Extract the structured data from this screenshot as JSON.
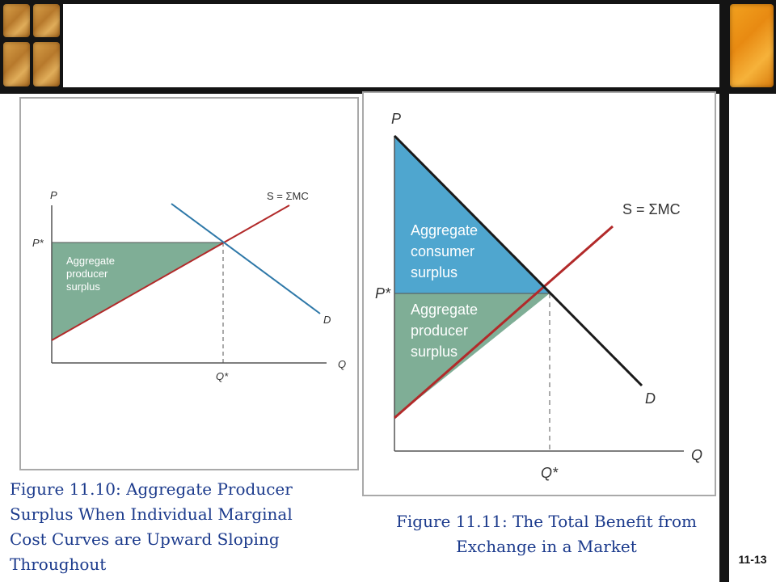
{
  "slide": {
    "number": "11-13"
  },
  "figure_left": {
    "caption": "Figure 11.10: Aggregate Producer Surplus When Individual Marginal Cost Curves are Upward Sloping Throughout",
    "axis_p": "P",
    "axis_q": "Q",
    "p_star": "P*",
    "q_star": "Q*",
    "supply_label": "S = ΣMC",
    "demand_label": "D",
    "producer_surplus_lines": [
      "Aggregate",
      "producer",
      "surplus"
    ]
  },
  "figure_right": {
    "caption_lines": [
      "Figure 11.11: The Total Benefit from",
      "Exchange in a Market"
    ],
    "axis_p": "P",
    "axis_q": "Q",
    "p_star": "P*",
    "q_star": "Q*",
    "supply_label": "S = ΣMC",
    "demand_label": "D",
    "consumer_surplus_lines": [
      "Aggregate",
      "consumer",
      "surplus"
    ],
    "producer_surplus_lines": [
      "Aggregate",
      "producer",
      "surplus"
    ]
  },
  "colors": {
    "supply": "#b22a2a",
    "demand_left": "#2e78a8",
    "demand_right": "#1a1a1a",
    "producer_surplus_fill": "#7fae96",
    "consumer_surplus_fill": "#4fa6cf",
    "caption_text": "#1b3a8c"
  }
}
